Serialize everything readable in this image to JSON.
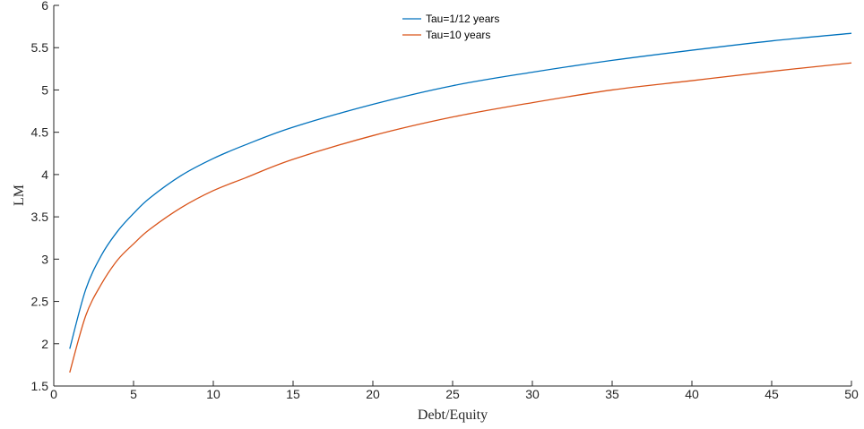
{
  "chart_data": {
    "type": "line",
    "title": "",
    "xlabel": "Debt/Equity",
    "ylabel": "LM",
    "xlim": [
      0,
      50
    ],
    "ylim": [
      1.5,
      6
    ],
    "xticks": [
      0,
      5,
      10,
      15,
      20,
      25,
      30,
      35,
      40,
      45,
      50
    ],
    "yticks": [
      1.5,
      2,
      2.5,
      3,
      3.5,
      4,
      4.5,
      5,
      5.5,
      6
    ],
    "xtick_labels": [
      "0",
      "5",
      "10",
      "15",
      "20",
      "25",
      "30",
      "35",
      "40",
      "45",
      "50"
    ],
    "ytick_labels": [
      "1.5",
      "2",
      "2.5",
      "3",
      "3.5",
      "4",
      "4.5",
      "5",
      "5.5",
      "6"
    ],
    "grid": false,
    "legend_position": "top-center",
    "x": [
      1,
      2,
      3,
      4,
      5,
      6,
      8,
      10,
      12,
      15,
      20,
      25,
      30,
      35,
      40,
      45,
      50
    ],
    "series": [
      {
        "name": "Tau=1/12 years",
        "color": "#0072BD",
        "values": [
          1.94,
          2.64,
          3.05,
          3.33,
          3.54,
          3.72,
          3.99,
          4.19,
          4.35,
          4.56,
          4.83,
          5.05,
          5.21,
          5.35,
          5.47,
          5.58,
          5.67
        ]
      },
      {
        "name": "Tau=10 years",
        "color": "#D95319",
        "values": [
          1.66,
          2.33,
          2.71,
          2.99,
          3.18,
          3.35,
          3.61,
          3.81,
          3.96,
          4.18,
          4.46,
          4.68,
          4.85,
          5.0,
          5.11,
          5.22,
          5.32
        ]
      }
    ]
  }
}
